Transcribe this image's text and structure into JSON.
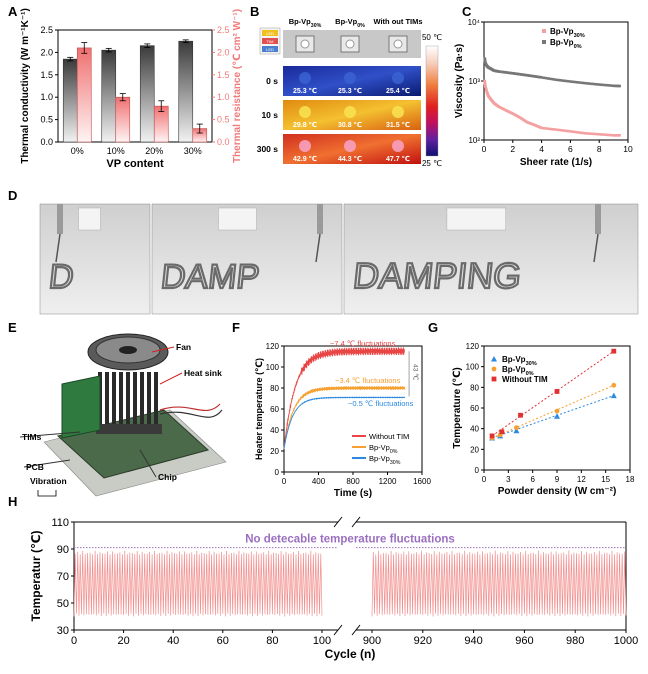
{
  "panels": {
    "A": "A",
    "B": "B",
    "C": "C",
    "D": "D",
    "E": "E",
    "F": "F",
    "G": "G",
    "H": "H"
  },
  "colors": {
    "bar_dark": "#4a4a4a",
    "bar_pink": "#f08a8a",
    "resistance_axis": "#f07a7a",
    "f_without": "#e84545",
    "f_bp0": "#f5a030",
    "f_bp30": "#2a8ae0",
    "h_line": "#f29090",
    "h_ref": "#9b6fc0"
  },
  "chart_data": [
    {
      "id": "A",
      "type": "bar",
      "categories": [
        "0%",
        "10%",
        "20%",
        "30%"
      ],
      "xlabel": "VP content",
      "series": [
        {
          "name": "Thermal conductivity",
          "axis": "left",
          "values": [
            1.85,
            2.05,
            2.15,
            2.25
          ],
          "errors": [
            0.04,
            0.04,
            0.04,
            0.03
          ]
        },
        {
          "name": "Thermal resistance",
          "axis": "right",
          "values": [
            2.1,
            1.0,
            0.8,
            0.3
          ],
          "errors": [
            0.12,
            0.08,
            0.12,
            0.1
          ]
        }
      ],
      "ylabel_left": "Thermal conductivity (W m⁻¹K⁻¹)",
      "ylabel_right": "Thermal resistance (℃ cm² W⁻¹)",
      "ylim_left": [
        0,
        2.5
      ],
      "ylim_right": [
        0,
        2.5
      ],
      "yticks_left": [
        "0.0",
        "0.5",
        "1.0",
        "1.5",
        "2.0",
        "2.5"
      ],
      "yticks_right": [
        "0.0",
        "0.5",
        "1.0",
        "1.5",
        "2.0",
        "2.5"
      ]
    },
    {
      "id": "C",
      "type": "scatter",
      "xlabel": "Sheer rate (1/s)",
      "ylabel": "Viscosity (Pa·s)",
      "xlim": [
        0,
        10
      ],
      "ylim_log": [
        100,
        10000
      ],
      "xticks": [
        "0",
        "2",
        "4",
        "6",
        "8",
        "10"
      ],
      "yticks": [
        "10²",
        "10³",
        "10⁴"
      ],
      "legend": [
        "Bp-Vp30%",
        "Bp-Vp0%"
      ],
      "series": [
        {
          "name": "Bp-Vp30%",
          "color": "#f4a0a0",
          "x": [
            0.05,
            0.1,
            0.2,
            0.3,
            0.5,
            0.7,
            1.0,
            1.5,
            2.0,
            2.5,
            3.0,
            3.5,
            4.0,
            5.0,
            6.0,
            7.0,
            8.0,
            9.0,
            9.5
          ],
          "y": [
            1000,
            800,
            650,
            560,
            480,
            420,
            370,
            320,
            280,
            240,
            200,
            180,
            160,
            150,
            140,
            130,
            125,
            120,
            120
          ]
        },
        {
          "name": "Bp-Vp0%",
          "color": "#777777",
          "x": [
            0.05,
            0.1,
            0.2,
            0.3,
            0.5,
            0.7,
            1.0,
            1.5,
            2.0,
            2.5,
            3.0,
            3.5,
            4.0,
            5.0,
            6.0,
            7.0,
            8.0,
            9.0,
            9.5
          ],
          "y": [
            2400,
            2000,
            1800,
            1700,
            1600,
            1500,
            1450,
            1400,
            1350,
            1300,
            1250,
            1200,
            1150,
            1050,
            980,
            920,
            870,
            830,
            820
          ]
        }
      ]
    },
    {
      "id": "F",
      "type": "line",
      "xlabel": "Time (s)",
      "ylabel": "Heater temperature (℃)",
      "xlim": [
        0,
        1600
      ],
      "ylim": [
        0,
        120
      ],
      "xticks": [
        "0",
        "400",
        "800",
        "1200",
        "1600"
      ],
      "yticks": [
        "0",
        "20",
        "40",
        "60",
        "80",
        "100",
        "120"
      ],
      "annotations": [
        "~7.4 ℃ fluctuations",
        "~3.4 ℃ fluctuations",
        "~0.5 ℃ fluctuations",
        "43 ℃"
      ],
      "legend": [
        "Without TIM",
        "Bp-Vp0%",
        "Bp-Vp30%"
      ],
      "series": [
        {
          "name": "Without TIM",
          "color": "#e84545",
          "plateau": 115,
          "fluct": 3.7,
          "tau": 130
        },
        {
          "name": "Bp-Vp0%",
          "color": "#f5a030",
          "plateau": 80,
          "fluct": 1.7,
          "tau": 110
        },
        {
          "name": "Bp-Vp30%",
          "color": "#2a8ae0",
          "plateau": 71,
          "fluct": 0.25,
          "tau": 100
        }
      ],
      "start_temp": 22,
      "x_end": 1400
    },
    {
      "id": "G",
      "type": "scatter",
      "xlabel": "Powder density (W cm⁻²)",
      "ylabel": "Temperature (℃)",
      "xlim": [
        0,
        18
      ],
      "ylim": [
        0,
        120
      ],
      "xticks": [
        "0",
        "3",
        "6",
        "9",
        "12",
        "15",
        "18"
      ],
      "yticks": [
        "0",
        "20",
        "40",
        "60",
        "80",
        "100",
        "120"
      ],
      "legend": [
        "Bp-Vp30%",
        "Bp-Vp0%",
        "Without TIM"
      ],
      "series": [
        {
          "name": "Bp-Vp30%",
          "color": "#2a8ae0",
          "marker": "triangle",
          "x": [
            1,
            2,
            4,
            9,
            16
          ],
          "y": [
            31,
            33,
            38,
            52,
            72
          ]
        },
        {
          "name": "Bp-Vp0%",
          "color": "#f5a030",
          "marker": "circle",
          "x": [
            1,
            2,
            4,
            9,
            16
          ],
          "y": [
            31,
            34,
            41,
            57,
            82
          ]
        },
        {
          "name": "Without TIM",
          "color": "#e03030",
          "marker": "square",
          "x": [
            1,
            2.2,
            4.5,
            9,
            16
          ],
          "y": [
            33,
            37,
            53,
            76,
            115
          ]
        }
      ]
    },
    {
      "id": "H",
      "type": "line",
      "xlabel": "Cycle (n)",
      "ylabel": "Temperatur (℃)",
      "ylim": [
        30,
        110
      ],
      "yticks": [
        "30",
        "50",
        "70",
        "90",
        "110"
      ],
      "xticks_left": [
        "0",
        "20",
        "40",
        "60",
        "80",
        "100"
      ],
      "xticks_right": [
        "900",
        "920",
        "940",
        "960",
        "980",
        "1000"
      ],
      "x_ranges": [
        [
          0,
          100
        ],
        [
          900,
          1000
        ]
      ],
      "oscillation": {
        "min": 40,
        "max": 89
      },
      "reference_line": 91,
      "annotation": "No detecable temperature fluctuations"
    }
  ],
  "panel_B": {
    "headers": [
      "Bp-Vp30%",
      "Bp-Vp0%",
      "With out TIMs"
    ],
    "rows": [
      {
        "time": "0 s",
        "temps": [
          "25.3 ℃",
          "25.3 ℃",
          "25.4 ℃"
        ]
      },
      {
        "time": "10 s",
        "temps": [
          "29.8 ℃",
          "30.8 ℃",
          "31.5 ℃"
        ]
      },
      {
        "time": "300 s",
        "temps": [
          "42.9 ℃",
          "44.3 ℃",
          "47.7 ℃"
        ]
      }
    ],
    "scale_max": "50 ℃",
    "scale_min": "25 ℃",
    "stack_labels": [
      "LED",
      "TIM",
      "LED"
    ]
  },
  "panel_D": {
    "writing": [
      "D",
      "DAMP",
      "DAMPING"
    ]
  },
  "panel_E": {
    "labels": [
      "Fan",
      "Heat sink",
      "TIMs",
      "PCB",
      "Chip",
      "Vibration"
    ]
  }
}
